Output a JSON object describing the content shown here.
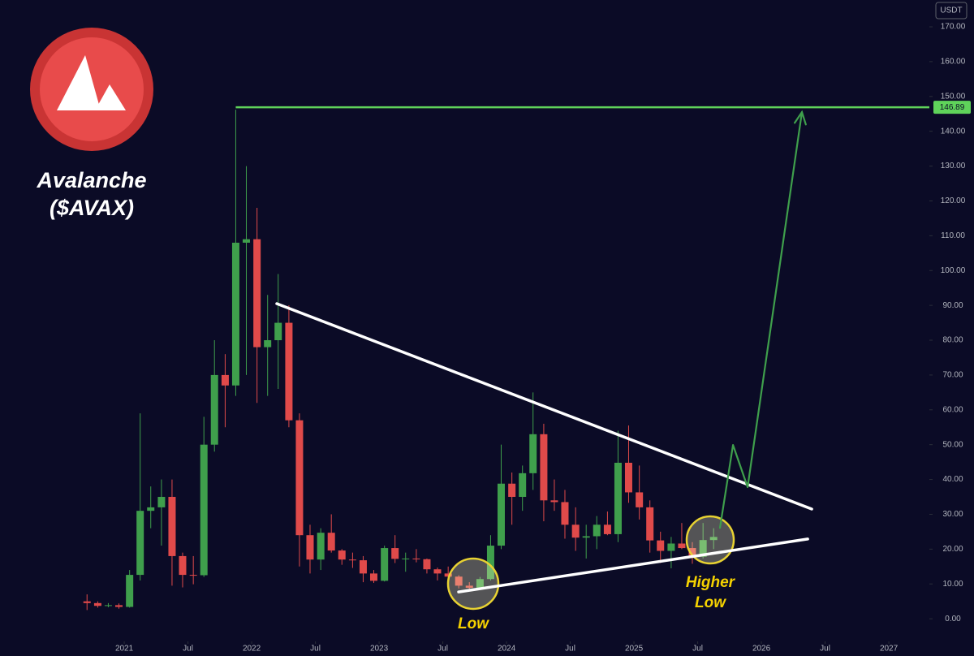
{
  "chart_data": {
    "type": "candlestick",
    "title": "Avalanche",
    "subtitle": "($AVAX)",
    "currency": "USDT",
    "up_color": "#3f9f4c",
    "down_color": "#e04a4a",
    "x": [
      2020.708,
      2020.792,
      2020.875,
      2020.958,
      2021.042,
      2021.125,
      2021.208,
      2021.292,
      2021.375,
      2021.458,
      2021.542,
      2021.625,
      2021.708,
      2021.792,
      2021.875,
      2021.958,
      2022.042,
      2022.125,
      2022.208,
      2022.292,
      2022.375,
      2022.458,
      2022.542,
      2022.625,
      2022.708,
      2022.792,
      2022.875,
      2022.958,
      2023.042,
      2023.125,
      2023.208,
      2023.292,
      2023.375,
      2023.458,
      2023.542,
      2023.625,
      2023.708,
      2023.792,
      2023.875,
      2023.958,
      2024.042,
      2024.125,
      2024.208,
      2024.292,
      2024.375,
      2024.458,
      2024.542,
      2024.625,
      2024.708,
      2024.792,
      2024.875,
      2024.958,
      2025.042,
      2025.125,
      2025.208,
      2025.292,
      2025.375,
      2025.458,
      2025.542,
      2025.625
    ],
    "open": [
      5.0,
      4.5,
      3.7,
      3.9,
      3.4,
      12.6,
      31,
      32,
      35,
      18,
      12.6,
      12.5,
      50,
      70,
      67,
      108,
      109,
      78,
      80,
      85,
      57,
      24,
      17,
      24.7,
      19.6,
      17,
      16.8,
      13,
      10.9,
      20.3,
      17.2,
      17.3,
      17.1,
      14.2,
      13,
      12.1,
      9.5,
      8.9,
      11.4,
      21,
      38.8,
      35,
      41.8,
      53,
      34,
      33.5,
      27,
      23.3,
      23.7,
      27,
      24.3,
      44.8,
      36.3,
      32,
      22.5,
      19.5,
      21.6,
      20.3,
      17.8,
      22.6
    ],
    "high": [
      7.0,
      5.0,
      4.5,
      4.4,
      14,
      59,
      38,
      40,
      40,
      19,
      18,
      58,
      80,
      76,
      146.2,
      130,
      118,
      93,
      99,
      90,
      59,
      27,
      26,
      30,
      20,
      19,
      18,
      14,
      21,
      24,
      19,
      20,
      17.3,
      14.7,
      15,
      12.5,
      10.5,
      12,
      24,
      50,
      42,
      44,
      65,
      56,
      40,
      37,
      32,
      27,
      29.5,
      30.8,
      54,
      55.5,
      44,
      34,
      25,
      23.5,
      27.5,
      22,
      27.5,
      26
    ],
    "low": [
      2.5,
      3.2,
      3.3,
      2.9,
      3.2,
      11,
      26,
      21,
      9.5,
      9,
      9.9,
      12,
      48,
      55,
      64,
      70,
      62,
      64,
      66,
      55,
      15,
      13,
      14,
      19,
      15.5,
      14.6,
      10.5,
      10.3,
      10.7,
      16,
      13.5,
      16.2,
      13,
      11,
      11.8,
      8.7,
      8.6,
      8.7,
      11,
      20,
      27,
      31,
      37,
      28,
      31,
      23,
      19.5,
      17.3,
      20,
      24,
      22,
      33.3,
      28.5,
      19,
      16,
      14.5,
      20,
      15.8,
      17.3,
      20
    ],
    "close": [
      4.5,
      3.7,
      3.9,
      3.4,
      12.6,
      31,
      32,
      35,
      18,
      12.6,
      12.5,
      50,
      70,
      67,
      108,
      109,
      78,
      80,
      85,
      57,
      24,
      17,
      24.7,
      19.6,
      17,
      16.8,
      13,
      10.9,
      20.3,
      17.2,
      17.3,
      17.1,
      14.2,
      13,
      12.1,
      9.5,
      8.9,
      11.4,
      21,
      38.8,
      35,
      41.8,
      53,
      34,
      33.5,
      27,
      23.3,
      23.7,
      27,
      24.3,
      44.8,
      36.3,
      32,
      22.5,
      19.5,
      21.6,
      20.3,
      17.8,
      22.6,
      23.5
    ],
    "xlim": [
      2020.025,
      2027.318
    ],
    "xticks": [
      {
        "value": 2021,
        "label": "2021"
      },
      {
        "value": 2021.5,
        "label": "Jul"
      },
      {
        "value": 2022,
        "label": "2022"
      },
      {
        "value": 2022.5,
        "label": "Jul"
      },
      {
        "value": 2023,
        "label": "2023"
      },
      {
        "value": 2023.5,
        "label": "Jul"
      },
      {
        "value": 2024,
        "label": "2024"
      },
      {
        "value": 2024.5,
        "label": "Jul"
      },
      {
        "value": 2025,
        "label": "2025"
      },
      {
        "value": 2025.5,
        "label": "Jul"
      },
      {
        "value": 2026,
        "label": "2026"
      },
      {
        "value": 2026.5,
        "label": "Jul"
      },
      {
        "value": 2027,
        "label": "2027"
      }
    ],
    "ylim": [
      -6.5,
      177.7
    ],
    "yticks": [
      {
        "value": 0,
        "label": "0.00"
      },
      {
        "value": 10,
        "label": "10.00"
      },
      {
        "value": 20,
        "label": "20.00"
      },
      {
        "value": 30,
        "label": "30.00"
      },
      {
        "value": 40,
        "label": "40.00"
      },
      {
        "value": 50,
        "label": "50.00"
      },
      {
        "value": 60,
        "label": "60.00"
      },
      {
        "value": 70,
        "label": "70.00"
      },
      {
        "value": 80,
        "label": "80.00"
      },
      {
        "value": 90,
        "label": "90.00"
      },
      {
        "value": 100,
        "label": "100.00"
      },
      {
        "value": 110,
        "label": "110.00"
      },
      {
        "value": 120,
        "label": "120.00"
      },
      {
        "value": 130,
        "label": "130.00"
      },
      {
        "value": 140,
        "label": "140.00"
      },
      {
        "value": 150,
        "label": "150.00"
      },
      {
        "value": 160,
        "label": "160.00"
      },
      {
        "value": 170,
        "label": "170.00"
      }
    ],
    "level": {
      "value": 146.89,
      "label": "146.89",
      "color": "#5fd35a"
    },
    "trendlines": [
      {
        "x": [
          2022.197,
          2026.395
        ],
        "y": [
          90.5,
          31.5
        ],
        "color": "#ffffff"
      },
      {
        "x": [
          2023.624,
          2026.363
        ],
        "y": [
          7.7,
          22.9
        ],
        "color": "#ffffff"
      }
    ],
    "projection": {
      "x": [
        2025.675,
        2025.777,
        2025.892,
        2026.318
      ],
      "y": [
        26.1,
        49.9,
        37.8,
        145.5
      ],
      "color": "#3f9f4c"
    },
    "annotations": {
      "low": "Low",
      "higher_low": [
        "Higher",
        "Low"
      ]
    }
  }
}
